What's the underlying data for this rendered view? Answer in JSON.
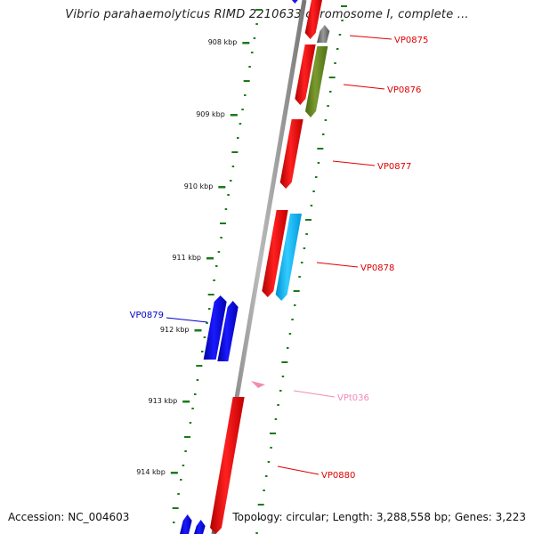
{
  "title": "Vibrio parahaemolyticus RIMD 2210633 chromosome I, complete ...",
  "footer": {
    "accession": "Accession: NC_004603",
    "summary": "Topology: circular; Length: 3,288,558 bp; Genes: 3,223"
  },
  "ruler": {
    "ticks": [
      {
        "label": "908 kbp"
      },
      {
        "label": "909 kbp"
      },
      {
        "label": "910 kbp"
      },
      {
        "label": "911 kbp"
      },
      {
        "label": "912 kbp"
      },
      {
        "label": "913 kbp"
      },
      {
        "label": "914 kbp"
      }
    ]
  },
  "genes": [
    {
      "label": "VP0875",
      "color": "#e00000"
    },
    {
      "label": "VP0876",
      "color": "#e00000"
    },
    {
      "label": "VP0877",
      "color": "#e00000"
    },
    {
      "label": "VP0878",
      "color": "#e00000"
    },
    {
      "label": "VP0879",
      "color": "#0000cc"
    },
    {
      "label": "VPt036",
      "color": "#f08cb4"
    },
    {
      "label": "VP0880",
      "color": "#e00000"
    }
  ],
  "colors": {
    "forward_cds": "#ff0000",
    "reverse_cds": "#0000ee",
    "trna": "#f0a0c0",
    "olive_feature": "#6b8e23",
    "cyan_feature": "#00bfff",
    "gray_feature": "#808080",
    "backbone": "#888888",
    "tick_marks": "#1a7a1a"
  }
}
